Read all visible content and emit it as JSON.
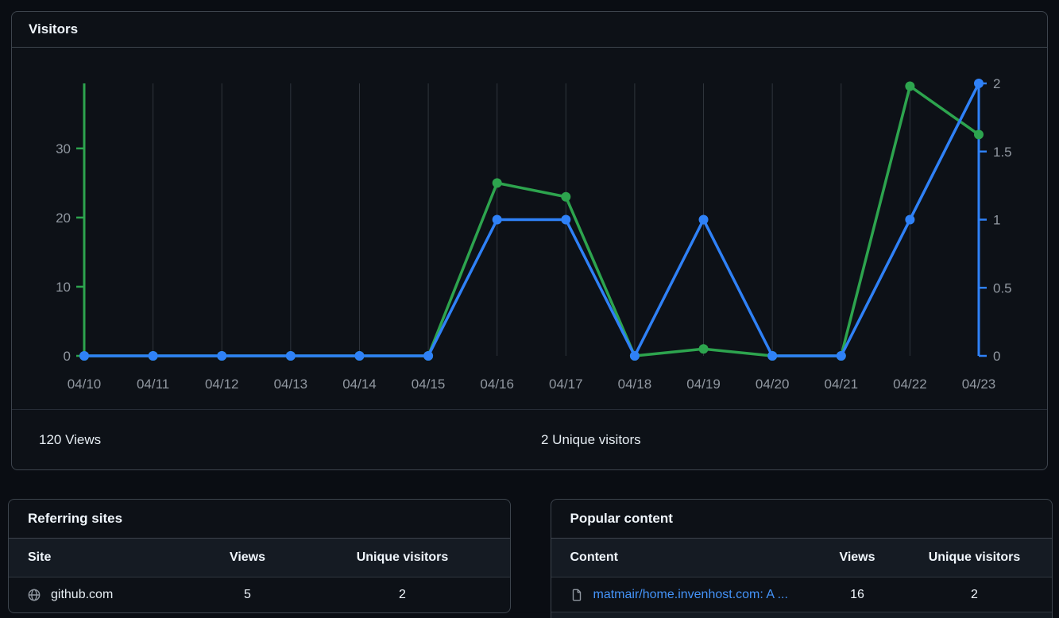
{
  "visitors_panel": {
    "title": "Visitors",
    "footer": {
      "views_total": "120 Views",
      "unique_total": "2 Unique visitors"
    }
  },
  "chart_data": {
    "type": "line",
    "title": "Visitors",
    "x": [
      "04/10",
      "04/11",
      "04/12",
      "04/13",
      "04/14",
      "04/15",
      "04/16",
      "04/17",
      "04/18",
      "04/19",
      "04/20",
      "04/21",
      "04/22",
      "04/23"
    ],
    "series": [
      {
        "name": "Views",
        "axis": "left",
        "color": "#2da44e",
        "values": [
          0,
          0,
          0,
          0,
          0,
          0,
          25,
          23,
          0,
          1,
          0,
          0,
          39,
          32
        ]
      },
      {
        "name": "Unique visitors",
        "axis": "right",
        "color": "#2f81f7",
        "values": [
          0,
          0,
          0,
          0,
          0,
          0,
          1,
          1,
          0,
          1,
          0,
          0,
          1,
          2
        ]
      }
    ],
    "left_axis": {
      "label": "Views",
      "ticks": [
        0,
        10,
        20,
        30
      ],
      "range": [
        0,
        39.4
      ],
      "color": "#2da44e"
    },
    "right_axis": {
      "label": "Unique visitors",
      "ticks": [
        0,
        0.5,
        1,
        1.5,
        2
      ],
      "range": [
        0,
        2
      ],
      "color": "#2f81f7"
    },
    "grid": "vertical",
    "grid_color": "#2f353d",
    "tick_label_color": "#9198a1",
    "legend": "none"
  },
  "referring_sites": {
    "title": "Referring sites",
    "columns": [
      "Site",
      "Views",
      "Unique visitors"
    ],
    "rows": [
      {
        "icon": "globe-icon",
        "site": "github.com",
        "views": "5",
        "unique_visitors": "2"
      }
    ]
  },
  "popular_content": {
    "title": "Popular content",
    "columns": [
      "Content",
      "Views",
      "Unique visitors"
    ],
    "rows": [
      {
        "icon": "file-icon",
        "content": "matmair/home.invenhost.com: A ...",
        "views": "16",
        "unique_visitors": "2"
      }
    ]
  },
  "colors": {
    "page_bg": "#0a0d13",
    "card_bg": "#0d1117",
    "card_border": "#3d444d",
    "table_head_bg": "#151b23",
    "views_green": "#2da44e",
    "unique_blue": "#2f81f7",
    "link_blue": "#4493f8",
    "muted_text": "#9198a1",
    "strong_text": "#f0f6fc"
  }
}
